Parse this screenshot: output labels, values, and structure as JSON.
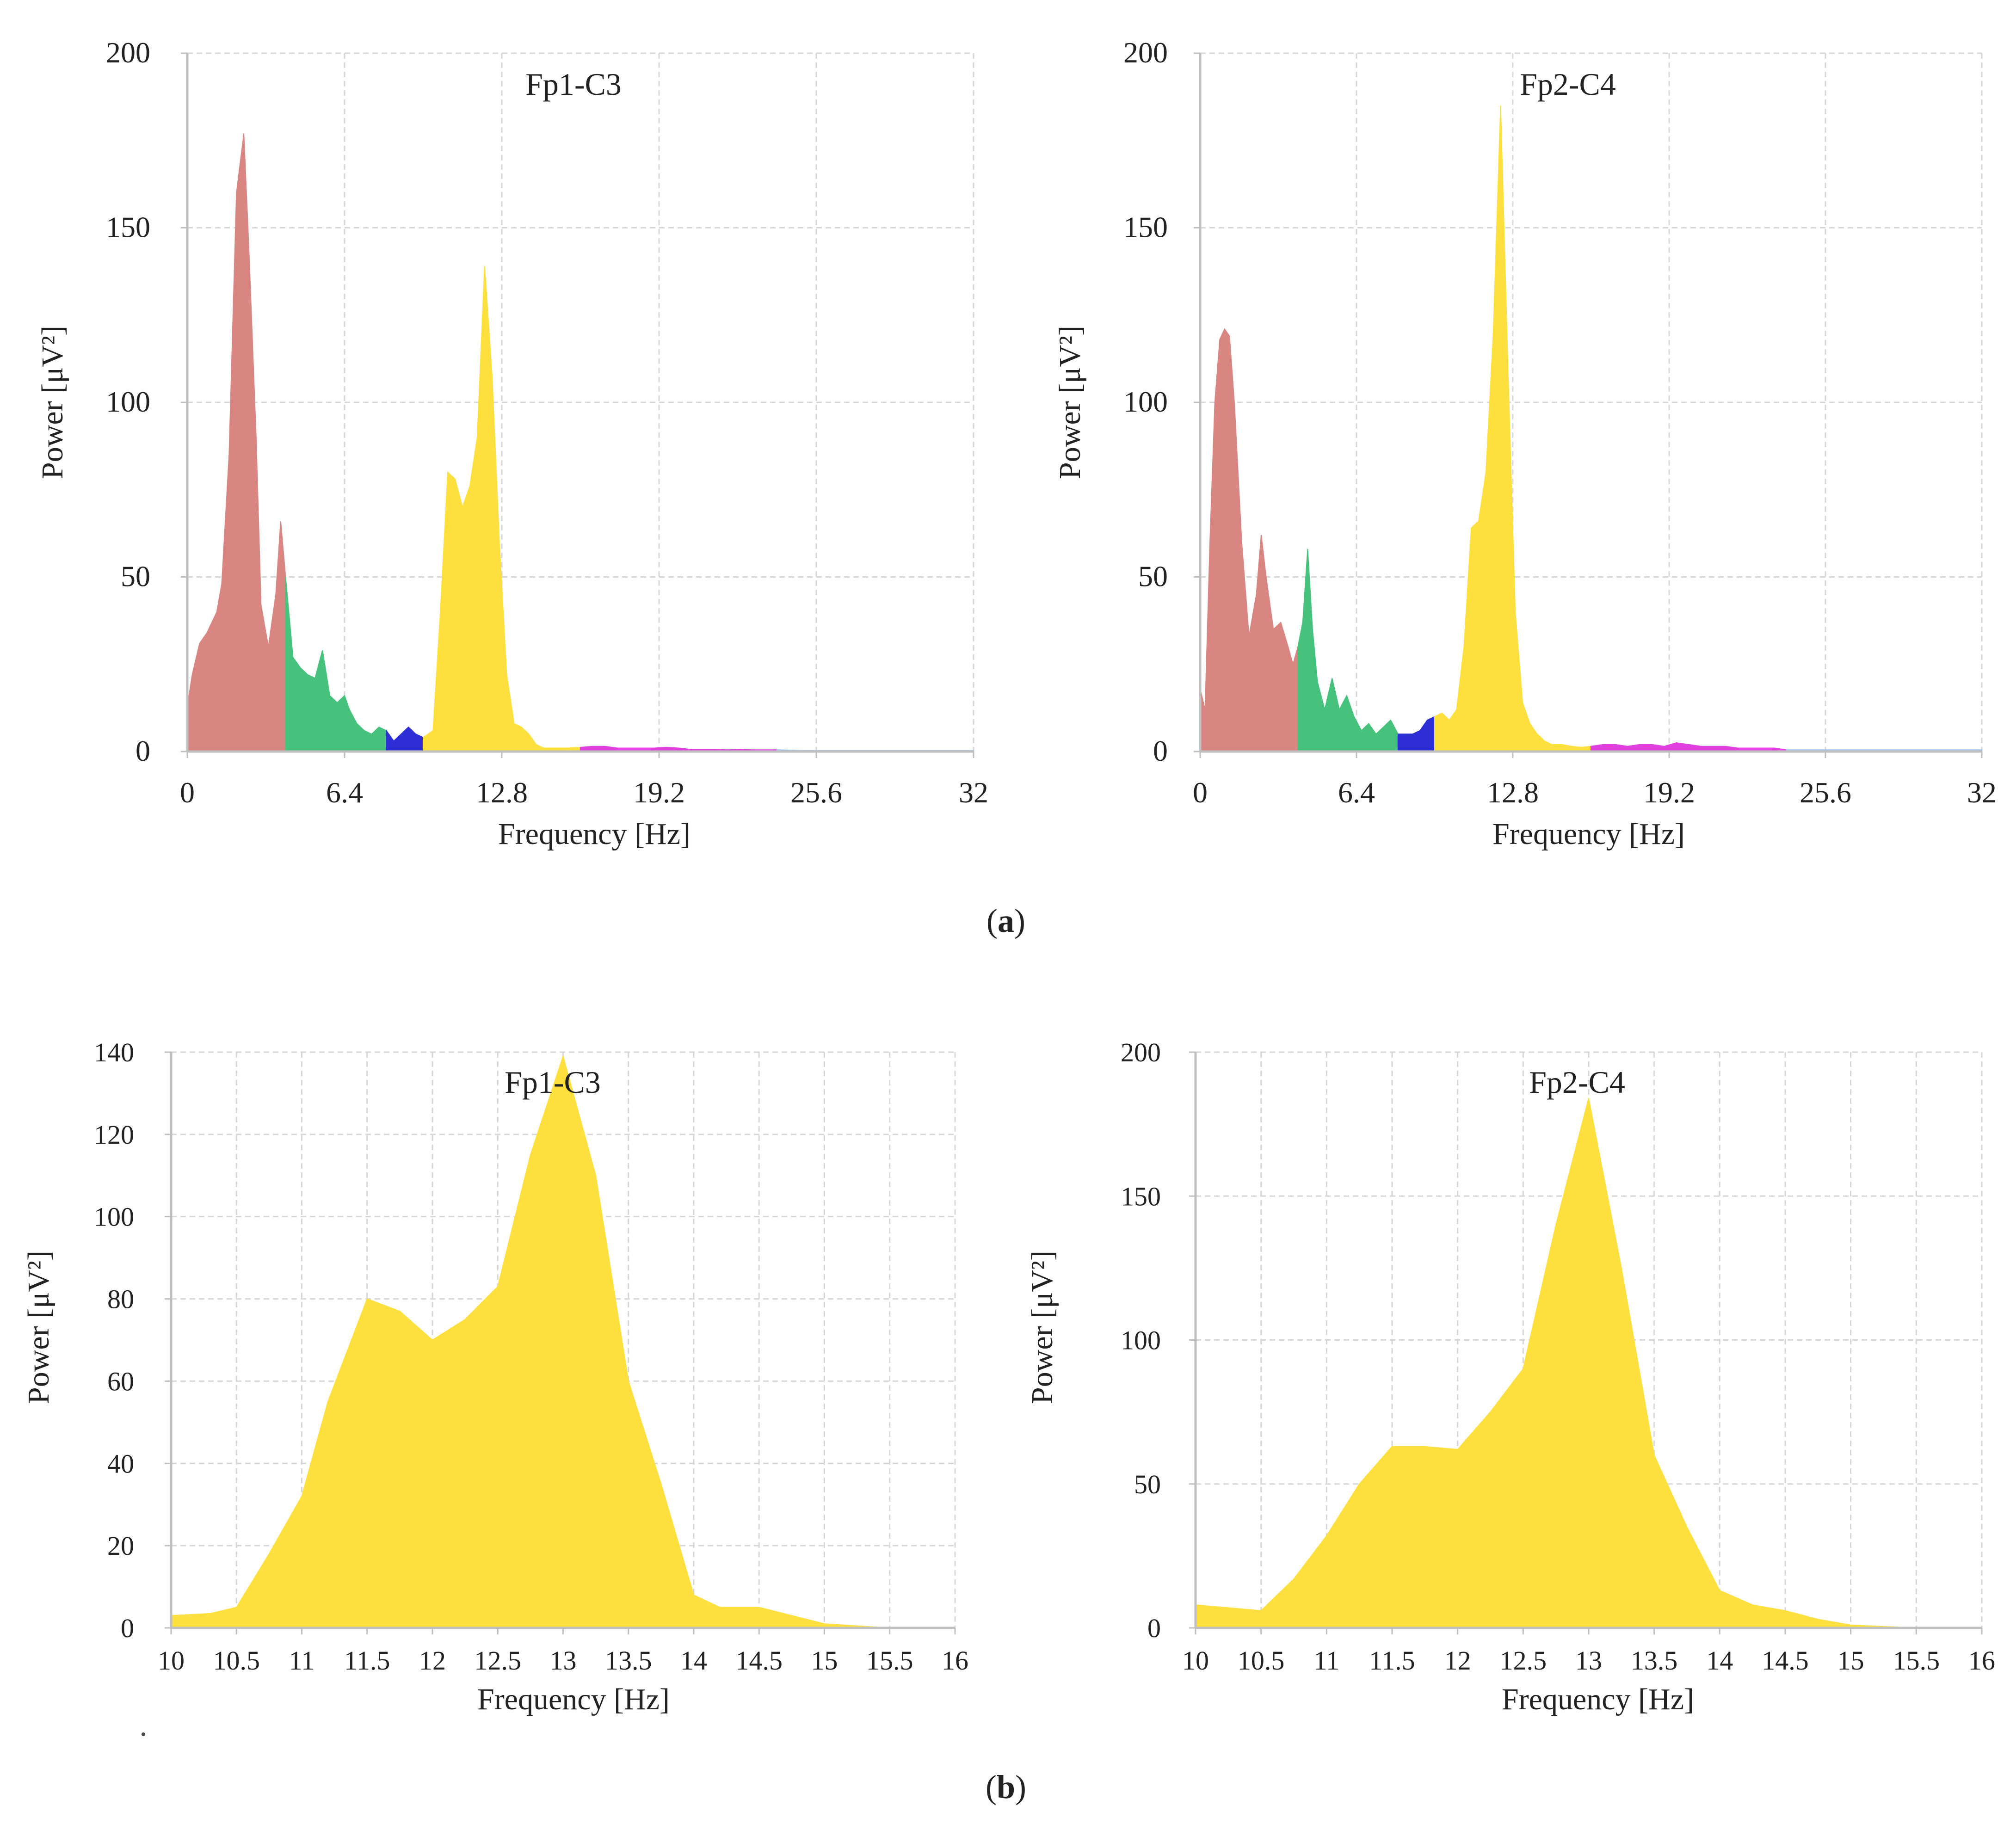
{
  "colors": {
    "delta": "#d98683",
    "theta": "#46c27c",
    "alpha": "#2d2ed6",
    "beta1": "#fde03e",
    "beta2": "#e040de",
    "gamma": "#9ec4ee",
    "zoom": "#fde03e"
  },
  "panels": [
    {
      "label_open": "(",
      "label_letter": "a",
      "label_close": ")"
    },
    {
      "label_open": "(",
      "label_letter": "b",
      "label_close": ")"
    }
  ],
  "chart_data": [
    {
      "type": "area",
      "title": "Fp1-C3",
      "xlabel": "Frequency [Hz]",
      "ylabel": "Power [μV²]",
      "xlim": [
        0,
        32
      ],
      "ylim": [
        0,
        200
      ],
      "xticks": [
        0,
        6.4,
        12.8,
        19.2,
        25.6,
        32
      ],
      "xtick_labels": [
        "0",
        "6.4",
        "12.8",
        "19.2",
        "25.6",
        "32"
      ],
      "yticks": [
        0,
        50,
        100,
        150,
        200
      ],
      "ytick_labels": [
        "0",
        "50",
        "100",
        "150",
        "200"
      ],
      "x": [
        0,
        0.2,
        0.5,
        0.8,
        1.0,
        1.2,
        1.4,
        1.7,
        2.0,
        2.3,
        2.5,
        2.8,
        3.0,
        3.3,
        3.6,
        3.8,
        4.0,
        4.3,
        4.6,
        4.9,
        5.2,
        5.5,
        5.8,
        6.1,
        6.4,
        6.6,
        6.9,
        7.2,
        7.5,
        7.8,
        8.1,
        8.4,
        8.7,
        9.0,
        9.3,
        9.6,
        10.0,
        10.3,
        10.6,
        10.9,
        11.2,
        11.5,
        11.8,
        12.1,
        12.4,
        12.7,
        13.0,
        13.3,
        13.6,
        13.9,
        14.2,
        14.5,
        14.8,
        15.1,
        15.5,
        16.0,
        16.5,
        17.0,
        17.5,
        18.0,
        18.5,
        19.0,
        19.5,
        20.0,
        20.5,
        21.0,
        21.5,
        22.0,
        22.5,
        23.0,
        23.5,
        24.0,
        24.5,
        25.0,
        26.0,
        27.0,
        28.0,
        29.0,
        30.0,
        31.0,
        32.0
      ],
      "values": [
        13,
        22,
        31,
        34,
        37,
        40,
        48,
        85,
        160,
        177,
        145,
        90,
        42,
        30,
        45,
        66,
        50,
        27,
        24,
        22,
        21,
        29,
        16,
        14,
        16,
        12,
        8,
        6,
        5,
        7,
        6,
        3,
        5,
        7,
        5,
        4,
        6,
        40,
        80,
        78,
        70,
        76,
        90,
        139,
        108,
        60,
        22,
        8,
        7,
        5,
        2,
        1,
        1,
        1,
        1,
        1.2,
        1.5,
        1.5,
        1.0,
        1.0,
        1.0,
        1.0,
        1.2,
        1.0,
        0.6,
        0.6,
        0.6,
        0.5,
        0.6,
        0.5,
        0.5,
        0.5,
        0.4,
        0.3,
        0.3,
        0.3,
        0.3,
        0.3,
        0.3,
        0.3,
        0.3
      ],
      "bands": [
        {
          "name": "delta",
          "from": 0,
          "to": 4.0
        },
        {
          "name": "theta",
          "from": 4.0,
          "to": 8.1
        },
        {
          "name": "alpha",
          "from": 8.1,
          "to": 9.6
        },
        {
          "name": "beta1",
          "from": 9.6,
          "to": 16.0
        },
        {
          "name": "beta2",
          "from": 16.0,
          "to": 24.0
        },
        {
          "name": "gamma",
          "from": 24.0,
          "to": 32.0
        }
      ]
    },
    {
      "type": "area",
      "title": "Fp2-C4",
      "xlabel": "Frequency [Hz]",
      "ylabel": "Power [μV²]",
      "xlim": [
        0,
        32
      ],
      "ylim": [
        0,
        200
      ],
      "xticks": [
        0,
        6.4,
        12.8,
        19.2,
        25.6,
        32
      ],
      "xtick_labels": [
        "0",
        "6.4",
        "12.8",
        "19.2",
        "25.6",
        "32"
      ],
      "yticks": [
        0,
        50,
        100,
        150,
        200
      ],
      "ytick_labels": [
        "0",
        "50",
        "100",
        "150",
        "200"
      ],
      "x": [
        0,
        0.2,
        0.4,
        0.6,
        0.8,
        1.0,
        1.2,
        1.4,
        1.7,
        2.0,
        2.3,
        2.5,
        2.7,
        3.0,
        3.3,
        3.6,
        3.8,
        4.0,
        4.2,
        4.4,
        4.6,
        4.8,
        5.1,
        5.4,
        5.7,
        6.0,
        6.3,
        6.6,
        6.9,
        7.2,
        7.5,
        7.8,
        8.1,
        8.4,
        8.7,
        9.0,
        9.3,
        9.6,
        9.9,
        10.2,
        10.5,
        10.8,
        11.1,
        11.4,
        11.7,
        12.0,
        12.3,
        12.6,
        12.9,
        13.2,
        13.5,
        13.8,
        14.1,
        14.4,
        14.8,
        15.2,
        15.6,
        16.0,
        16.5,
        17.0,
        17.5,
        18.0,
        18.5,
        19.0,
        19.5,
        20.0,
        20.5,
        21.0,
        21.5,
        22.0,
        22.5,
        23.0,
        23.5,
        24.0,
        25.0,
        26.0,
        27.0,
        28.0,
        29.0,
        30.0,
        31.0,
        32.0
      ],
      "values": [
        18,
        12,
        60,
        100,
        118,
        121,
        119,
        100,
        60,
        33,
        45,
        62,
        50,
        35,
        37,
        30,
        25,
        30,
        37,
        58,
        35,
        20,
        12,
        21,
        12,
        16,
        10,
        6,
        8,
        5,
        7,
        9,
        5,
        5,
        5,
        6,
        9,
        10,
        11,
        9,
        12,
        30,
        64,
        66,
        80,
        120,
        185,
        110,
        40,
        14,
        8,
        5,
        3,
        2,
        2,
        1.5,
        1.2,
        1.5,
        2,
        2,
        1.5,
        2,
        2,
        1.5,
        2.5,
        2,
        1.5,
        1.5,
        1.5,
        1.0,
        1.0,
        1.0,
        1.0,
        0.5,
        0.5,
        0.5,
        0.5,
        0.5,
        0.5,
        0.5,
        0.5,
        0.5
      ],
      "bands": [
        {
          "name": "delta",
          "from": 0,
          "to": 4.0
        },
        {
          "name": "theta",
          "from": 4.0,
          "to": 8.1
        },
        {
          "name": "alpha",
          "from": 8.1,
          "to": 9.6
        },
        {
          "name": "beta1",
          "from": 9.6,
          "to": 16.0
        },
        {
          "name": "beta2",
          "from": 16.0,
          "to": 24.0
        },
        {
          "name": "gamma",
          "from": 24.0,
          "to": 32.0
        }
      ]
    },
    {
      "type": "area",
      "title": "Fp1-C3",
      "xlabel": "Frequency [Hz]",
      "ylabel": "Power [μV²]",
      "xlim": [
        10,
        16
      ],
      "ylim": [
        0,
        140
      ],
      "xticks": [
        10,
        10.5,
        11,
        11.5,
        12,
        12.5,
        13,
        13.5,
        14,
        14.5,
        15,
        15.5,
        16
      ],
      "xtick_labels": [
        "10",
        "10.5",
        "11",
        "11.5",
        "12",
        "12.5",
        "13",
        "13.5",
        "14",
        "14.5",
        "15",
        "15.5",
        "16"
      ],
      "yticks": [
        0,
        20,
        40,
        60,
        80,
        100,
        120,
        140
      ],
      "ytick_labels": [
        "0",
        "20",
        "40",
        "60",
        "80",
        "100",
        "120",
        "140"
      ],
      "x": [
        10.0,
        10.3,
        10.5,
        10.75,
        11.0,
        11.2,
        11.5,
        11.75,
        12.0,
        12.25,
        12.5,
        12.75,
        13.0,
        13.25,
        13.5,
        13.75,
        14.0,
        14.2,
        14.5,
        14.75,
        15.0,
        15.25,
        15.5
      ],
      "values": [
        3,
        3.5,
        5,
        18,
        32,
        55,
        80,
        77,
        70,
        75,
        83,
        115,
        139,
        110,
        60,
        35,
        8,
        5,
        5,
        3,
        1,
        0.5,
        0
      ],
      "bands": [
        {
          "name": "zoom",
          "from": 10,
          "to": 16
        }
      ]
    },
    {
      "type": "area",
      "title": "Fp2-C4",
      "xlabel": "Frequency [Hz]",
      "ylabel": "Power [μV²]",
      "xlim": [
        10,
        16
      ],
      "ylim": [
        0,
        200
      ],
      "xticks": [
        10,
        10.5,
        11,
        11.5,
        12,
        12.5,
        13,
        13.5,
        14,
        14.5,
        15,
        15.5,
        16
      ],
      "xtick_labels": [
        "10",
        "10.5",
        "11",
        "11.5",
        "12",
        "12.5",
        "13",
        "13.5",
        "14",
        "14.5",
        "15",
        "15.5",
        "16"
      ],
      "yticks": [
        0,
        50,
        100,
        150,
        200
      ],
      "ytick_labels": [
        "0",
        "50",
        "100",
        "150",
        "200"
      ],
      "x": [
        10.0,
        10.25,
        10.5,
        10.75,
        11.0,
        11.25,
        11.5,
        11.75,
        12.0,
        12.25,
        12.5,
        12.75,
        13.0,
        13.25,
        13.5,
        13.75,
        14.0,
        14.25,
        14.5,
        14.75,
        15.0,
        15.25,
        15.5
      ],
      "values": [
        8,
        7,
        6,
        17,
        32,
        50,
        63,
        63,
        62,
        75,
        90,
        140,
        184,
        125,
        60,
        35,
        13,
        8,
        6,
        3,
        1,
        0.5,
        0
      ],
      "bands": [
        {
          "name": "zoom",
          "from": 10,
          "to": 16
        }
      ]
    }
  ]
}
